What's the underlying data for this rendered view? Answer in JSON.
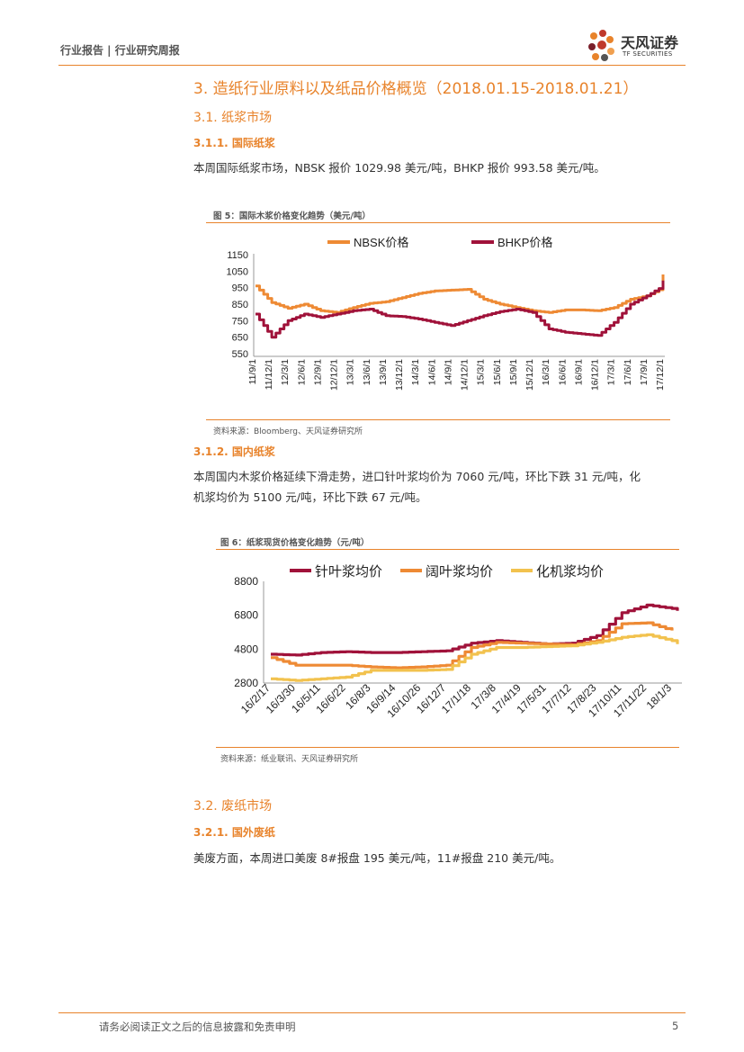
{
  "header": {
    "breadcrumb": "行业报告 | 行业研究周报"
  },
  "logo": {
    "name_cn": "天风证券",
    "name_en": "TF SECURITIES"
  },
  "section": {
    "title": "3. 造纸行业原料以及纸品价格概览（2018.01.15-2018.01.21）",
    "sub1": "3.1. 纸浆市场",
    "sub1_1": "3.1.1. 国际纸浆",
    "para1": "本周国际纸浆市场，NBSK 报价 1029.98 美元/吨，BHKP 报价 993.58 美元/吨。",
    "sub1_2": "3.1.2. 国内纸浆",
    "para2_line1": "本周国内木浆价格延续下滑走势，进口针叶浆均价为 7060 元/吨，环比下跌 31 元/吨，化",
    "para2_line2": "机浆均价为 5100 元/吨，环比下跌 67 元/吨。",
    "sub2": "3.2. 废纸市场",
    "sub2_1": "3.2.1. 国外废纸",
    "para3": "美废方面，本周进口美废 8#报盘 195 美元/吨，11#报盘 210 美元/吨。"
  },
  "figure5": {
    "title": "图 5：国际木浆价格变化趋势（美元/吨）",
    "source": "资料来源：Bloomberg、天风证券研究所"
  },
  "figure6": {
    "title": "图 6：纸浆现货价格变化趋势（元/吨）",
    "source": "资料来源：纸业联讯、天风证券研究所"
  },
  "footer": {
    "disclaimer": "请务必阅读正文之后的信息披露和免责申明",
    "page": "5"
  },
  "chart_data": [
    {
      "type": "line",
      "ylim": [
        550,
        1150
      ],
      "yticks": [
        "1150",
        "1050",
        "950",
        "850",
        "750",
        "650",
        "550"
      ],
      "x": [
        "11/9/1",
        "11/12/1",
        "12/3/1",
        "12/6/1",
        "12/9/1",
        "12/12/1",
        "13/3/1",
        "13/6/1",
        "13/9/1",
        "13/12/1",
        "14/3/1",
        "14/6/1",
        "14/9/1",
        "14/12/1",
        "15/3/1",
        "15/6/1",
        "15/9/1",
        "15/12/1",
        "16/3/1",
        "16/6/1",
        "16/9/1",
        "16/12/1",
        "17/3/1",
        "17/6/1",
        "17/9/1",
        "17/12/1"
      ],
      "series": [
        {
          "name": "NBSK价格",
          "color": "#ee8a34",
          "values": [
            960,
            860,
            825,
            850,
            810,
            800,
            830,
            855,
            865,
            890,
            915,
            930,
            935,
            940,
            880,
            850,
            830,
            810,
            800,
            815,
            815,
            810,
            830,
            880,
            900,
            950
          ]
        },
        {
          "name": "BHKP价格",
          "color": "#a0123a",
          "values": [
            790,
            650,
            750,
            790,
            770,
            790,
            810,
            820,
            780,
            775,
            760,
            740,
            720,
            750,
            780,
            805,
            820,
            800,
            700,
            680,
            670,
            660,
            740,
            850,
            900,
            960
          ]
        }
      ],
      "series_end": {
        "NBSK价格": 1029.98,
        "BHKP价格": 993.58
      }
    },
    {
      "type": "line",
      "ylim": [
        2800,
        8800
      ],
      "yticks": [
        "8800",
        "6800",
        "4800",
        "2800"
      ],
      "x": [
        "16/2/17",
        "16/3/30",
        "16/5/11",
        "16/6/22",
        "16/8/3",
        "16/9/14",
        "16/10/26",
        "16/12/7",
        "17/1/18",
        "17/3/8",
        "17/4/19",
        "17/5/31",
        "17/7/12",
        "17/8/23",
        "17/10/11",
        "17/11/22",
        "18/1/3"
      ],
      "series": [
        {
          "name": "针叶浆均价",
          "color": "#a0123a",
          "values": [
            4500,
            4450,
            4600,
            4650,
            4600,
            4600,
            4650,
            4700,
            5150,
            5300,
            5200,
            5100,
            5150,
            5600,
            6950,
            7400,
            7200
          ]
        },
        {
          "name": "阔叶浆均价",
          "color": "#ee8a34",
          "values": [
            4300,
            3850,
            3850,
            3850,
            3750,
            3700,
            3750,
            3850,
            4900,
            5200,
            5150,
            5100,
            5050,
            5300,
            6300,
            6350,
            5900
          ]
        },
        {
          "name": "化机浆均价",
          "color": "#f2c24e",
          "values": [
            3050,
            2950,
            3050,
            3150,
            3550,
            3550,
            3550,
            3600,
            4500,
            4900,
            4900,
            4950,
            5000,
            5200,
            5500,
            5650,
            5300
          ]
        }
      ],
      "series_end": {
        "针叶浆均价": 7060,
        "化机浆均价": 5100
      }
    }
  ]
}
